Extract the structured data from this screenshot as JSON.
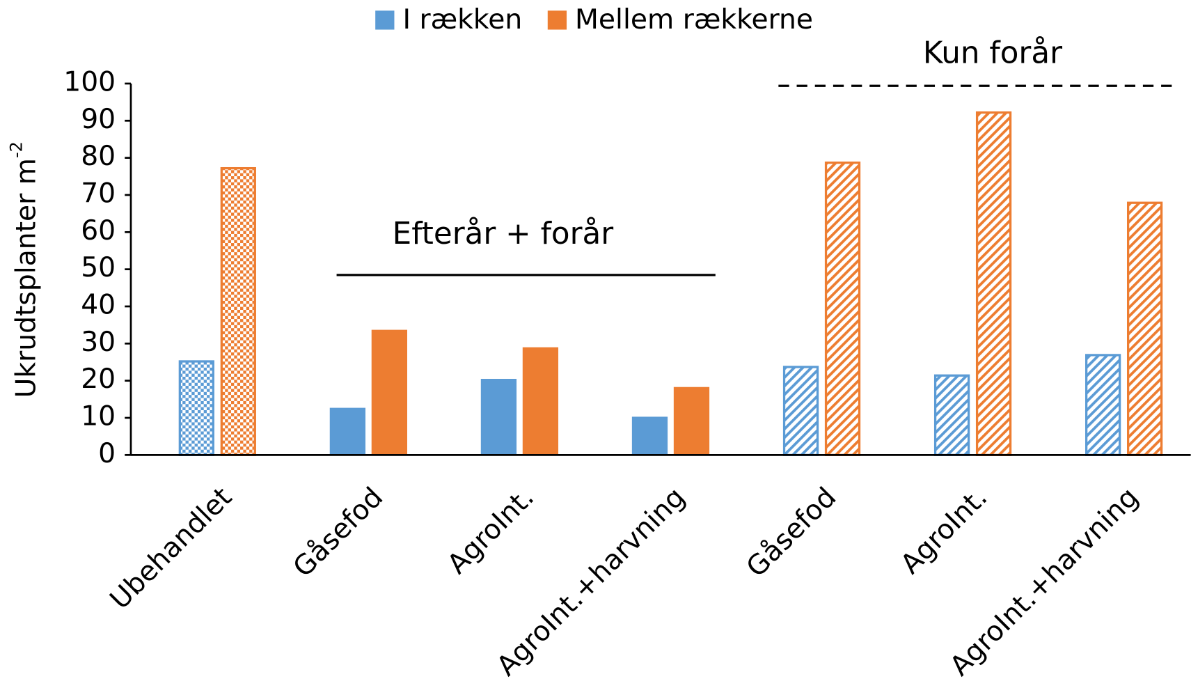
{
  "chart_data": {
    "type": "bar",
    "y_label": "Ukrudtsplanter m",
    "y_label_superscript": "-2",
    "categories": [
      "Ubehandlet",
      "Gåsefod",
      "AgroInt.",
      "AgroInt.+harvning",
      "Gåsefod",
      "AgroInt.",
      "AgroInt.+harvning"
    ],
    "fill_styles": [
      "checker",
      "solid",
      "solid",
      "solid",
      "hatch",
      "hatch",
      "hatch"
    ],
    "series": [
      {
        "name": "I rækken",
        "color": "#5b9bd5",
        "values": [
          25.5,
          12.7,
          20.5,
          10.3,
          24,
          21.7,
          27.2
        ]
      },
      {
        "name": "Mellem rækkerne",
        "color": "#ed7d31",
        "values": [
          77.5,
          33.7,
          29,
          18.3,
          79,
          92.5,
          68.2
        ]
      }
    ],
    "ylim": [
      0,
      100
    ],
    "yticks": [
      0,
      10,
      20,
      30,
      40,
      50,
      60,
      70,
      80,
      90,
      100
    ],
    "grid": false,
    "legend": "top",
    "annotations": [
      {
        "text": "Efterår + forår",
        "line": "solid"
      },
      {
        "text": "Kun forår",
        "line": "dashed"
      }
    ]
  }
}
